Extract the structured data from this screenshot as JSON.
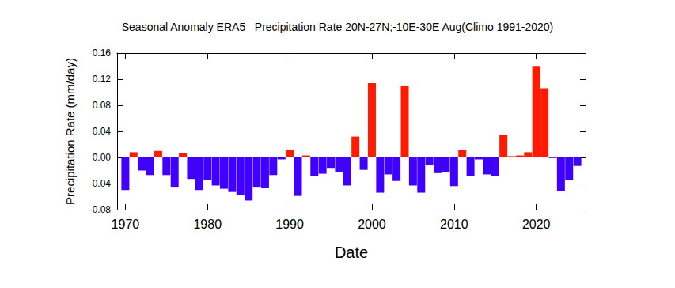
{
  "chart_data": {
    "type": "bar",
    "title": "Seasonal Anomaly ERA5   Precipitation Rate 20N-27N;-10E-30E Aug(Climo 1991-2020)",
    "x_label": "Date",
    "y_label": "Precipitation Rate (mm/day)",
    "x": [
      1970,
      1971,
      1972,
      1973,
      1974,
      1975,
      1976,
      1977,
      1978,
      1979,
      1980,
      1981,
      1982,
      1983,
      1984,
      1985,
      1986,
      1987,
      1988,
      1989,
      1990,
      1991,
      1992,
      1993,
      1994,
      1995,
      1996,
      1997,
      1998,
      1999,
      2000,
      2001,
      2002,
      2003,
      2004,
      2005,
      2006,
      2007,
      2008,
      2009,
      2010,
      2011,
      2012,
      2013,
      2014,
      2015,
      2016,
      2017,
      2018,
      2019,
      2020,
      2021,
      2022,
      2023,
      2024,
      2025
    ],
    "values": [
      -0.05,
      0.008,
      -0.02,
      -0.027,
      0.01,
      -0.027,
      -0.045,
      0.007,
      -0.033,
      -0.05,
      -0.035,
      -0.043,
      -0.048,
      -0.053,
      -0.058,
      -0.066,
      -0.045,
      -0.047,
      -0.027,
      -0.003,
      0.012,
      -0.059,
      0.003,
      -0.029,
      -0.025,
      -0.016,
      -0.022,
      -0.043,
      0.032,
      -0.019,
      0.114,
      -0.054,
      -0.026,
      -0.036,
      0.109,
      -0.043,
      -0.054,
      -0.011,
      -0.024,
      -0.022,
      -0.044,
      0.011,
      -0.028,
      -0.003,
      -0.026,
      -0.029,
      0.034,
      0.002,
      0.003,
      0.008,
      0.139,
      0.106,
      -0.001,
      -0.052,
      -0.035,
      -0.013
    ],
    "colors": [
      "#4000ff",
      "#ff1a00",
      "#4000ff",
      "#4000ff",
      "#ff1a00",
      "#4000ff",
      "#4000ff",
      "#ff1a00",
      "#4000ff",
      "#4000ff",
      "#4000ff",
      "#4000ff",
      "#4000ff",
      "#4000ff",
      "#4000ff",
      "#4000ff",
      "#4000ff",
      "#4000ff",
      "#4000ff",
      "#4000ff",
      "#ff1a00",
      "#4000ff",
      "#ff1a00",
      "#4000ff",
      "#4000ff",
      "#4000ff",
      "#4000ff",
      "#4000ff",
      "#ff1a00",
      "#4000ff",
      "#ff1a00",
      "#4000ff",
      "#4000ff",
      "#4000ff",
      "#ff1a00",
      "#4000ff",
      "#4000ff",
      "#4000ff",
      "#4000ff",
      "#4000ff",
      "#4000ff",
      "#ff1a00",
      "#4000ff",
      "#4000ff",
      "#4000ff",
      "#4000ff",
      "#ff1a00",
      "#ff1a00",
      "#ff1a00",
      "#ff1a00",
      "#ff1a00",
      "#ff1a00",
      "#4000ff",
      "#4000ff",
      "#4000ff",
      "#4000ff"
    ],
    "xlim": [
      1969,
      2026
    ],
    "xticks": [
      1970,
      1980,
      1990,
      2000,
      2010,
      2020
    ],
    "ylim": [
      -0.08,
      0.16
    ],
    "yticks": [
      -0.08,
      -0.04,
      {
        "value": 0,
        "label": "0.00"
      },
      0.04,
      0.08,
      0.12,
      0.16
    ],
    "grid": false
  }
}
